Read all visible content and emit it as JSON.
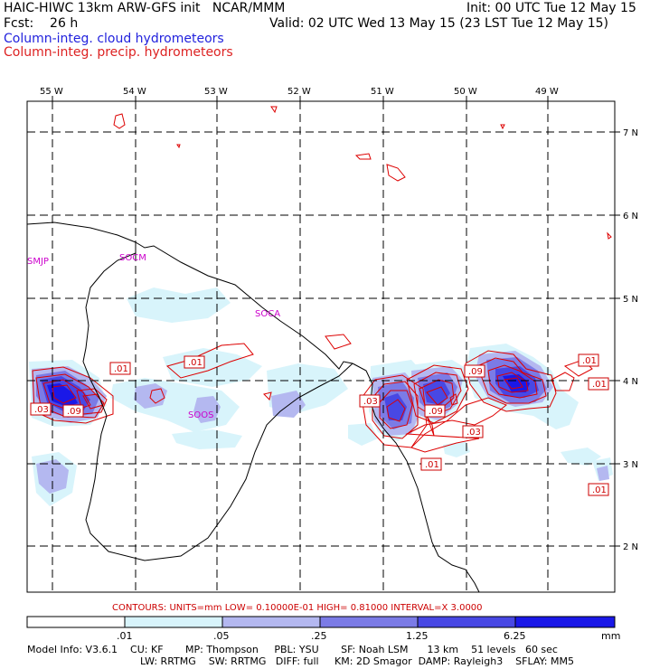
{
  "header": {
    "title": "HAIC-HIWC 13km ARW-GFS init   NCAR/MMM",
    "forecast": "Fcst:    26 h",
    "init": "Init: 00 UTC Tue 12 May 15",
    "valid": "Valid: 02 UTC Wed 13 May 15 (23 LST Tue 12 May 15)",
    "legend_cloud": "Column-integ. cloud hydrometeors",
    "legend_precip": "Column-integ. precip. hydrometeors"
  },
  "colors": {
    "cloud_text": "#2222dd",
    "precip_text": "#dd2222",
    "contour": "#dd0000",
    "shade_1": "#d8f4fb",
    "shade_2": "#b4b8f0",
    "shade_3": "#7b7be6",
    "shade_4": "#4848e4",
    "shade_5": "#1a18e8"
  },
  "lon_labels": [
    "55 W",
    "54 W",
    "53 W",
    "52 W",
    "51 W",
    "50 W",
    "49 W"
  ],
  "lat_labels": [
    "7 N",
    "6 N",
    "5 N",
    "4 N",
    "3 N",
    "2 N"
  ],
  "stations": [
    "SMJP",
    "SOCM",
    "SOCA",
    "SOOS"
  ],
  "contour_labels": [
    ".01",
    ".01",
    ".03",
    ".09",
    ".03",
    ".09",
    ".09",
    ".03",
    ".01",
    ".01",
    ".01",
    ".01"
  ],
  "contour_line": "CONTOURS:  UNITS=mm  LOW= 0.10000E-01  HIGH= 0.81000      INTERVAL=X  3.0000",
  "colorbar": {
    "labels": [
      ".01",
      ".05",
      ".25",
      "1.25",
      "6.25"
    ],
    "units": "mm"
  },
  "model_info": {
    "line1": "Model Info: V3.6.1    CU: KF       MP: Thompson     PBL: YSU       SF: Noah LSM      13 km    51 levels   60 sec",
    "line2": "LW: RRTMG    SW: RRTMG   DIFF: full     KM: 2D Smagor  DAMP: Rayleigh3    SFLAY: MM5"
  }
}
